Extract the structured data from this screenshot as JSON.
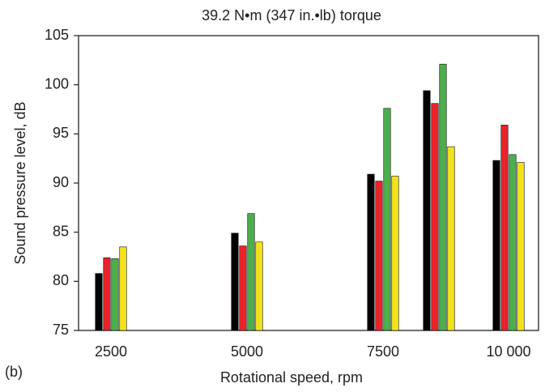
{
  "chart_data": {
    "type": "bar",
    "title": "39.2 N•m (347 in.•lb) torque",
    "annotation": "(b)",
    "x_label": "Rotational speed, rpm",
    "y_label": "Sound pressure level, dB",
    "categories": [
      "2500",
      "5000",
      "7500",
      null,
      "10 000"
    ],
    "series": [
      {
        "color": "#000000",
        "values": [
          80.8,
          84.9,
          90.9,
          99.4,
          92.3
        ]
      },
      {
        "color": "#e8232a",
        "values": [
          82.4,
          83.6,
          90.2,
          98.1,
          95.9
        ]
      },
      {
        "color": "#4cae4c",
        "values": [
          82.3,
          86.9,
          97.6,
          102.1,
          92.9
        ]
      },
      {
        "color": "#f2e21c",
        "values": [
          83.5,
          84.0,
          90.7,
          93.7,
          92.1
        ]
      }
    ],
    "ylim": [
      75,
      105
    ],
    "yticks": [
      75,
      80,
      85,
      90,
      95,
      100,
      105
    ],
    "grid": false
  }
}
